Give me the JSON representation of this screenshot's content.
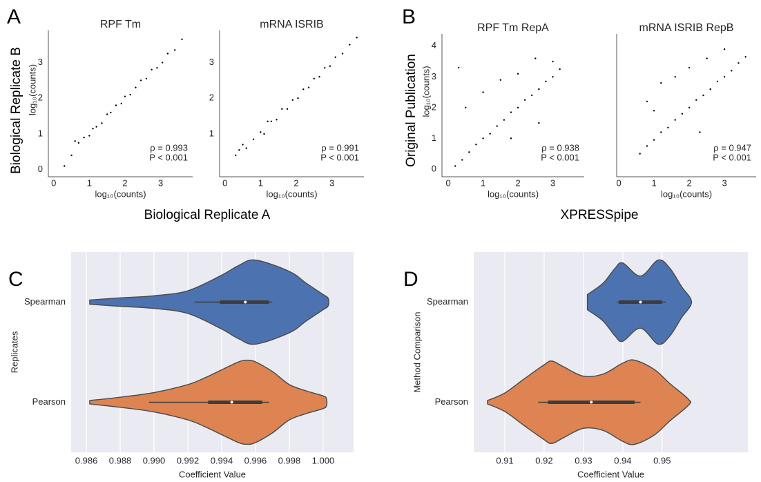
{
  "figure": {
    "panel_letters": [
      "A",
      "B",
      "C",
      "D"
    ],
    "shared_labels": [
      "Biological Replicate B",
      "Biological Replicate A",
      "Original Publication",
      "XPRESSpipe"
    ]
  },
  "chart_data": [
    {
      "type": "scatter",
      "title": "RPF Tm",
      "xlabel": "log₁₀(counts)",
      "ylabel": "log₁₀(counts)",
      "color": "#000000",
      "x": [
        0.3,
        0.5,
        0.7,
        0.85,
        1.0,
        1.1,
        1.2,
        1.35,
        1.5,
        1.6,
        1.75,
        1.9,
        2.0,
        2.15,
        2.3,
        2.45,
        2.6,
        2.75,
        2.9,
        3.05,
        3.2,
        3.4,
        3.6,
        0.6
      ],
      "y": [
        0.1,
        0.4,
        0.75,
        0.9,
        0.95,
        1.15,
        1.2,
        1.3,
        1.55,
        1.6,
        1.8,
        1.85,
        2.05,
        2.1,
        2.3,
        2.5,
        2.55,
        2.8,
        2.85,
        3.0,
        3.25,
        3.35,
        3.65,
        0.8
      ],
      "xlim": [
        -0.15,
        3.9
      ],
      "ylim": [
        -0.2,
        3.9
      ],
      "xticks": [
        0,
        1,
        2,
        3
      ],
      "yticks": [
        0,
        1,
        2,
        3
      ],
      "annotations": [
        "ρ = 0.993",
        "P < 0.001"
      ]
    },
    {
      "type": "scatter",
      "title": "mRNA ISRIB",
      "xlabel": "log₁₀(counts)",
      "color": "#000000",
      "x": [
        0.3,
        0.4,
        0.6,
        0.8,
        1.0,
        1.1,
        1.3,
        1.45,
        1.6,
        1.75,
        1.9,
        2.05,
        2.2,
        2.35,
        2.5,
        2.65,
        2.8,
        2.95,
        3.1,
        3.3,
        3.5,
        3.7,
        0.5,
        1.2
      ],
      "y": [
        0.4,
        0.55,
        0.6,
        0.85,
        1.05,
        1.0,
        1.35,
        1.4,
        1.7,
        1.7,
        1.95,
        2.0,
        2.25,
        2.3,
        2.55,
        2.6,
        2.85,
        2.9,
        3.15,
        3.25,
        3.5,
        3.7,
        0.7,
        1.35
      ],
      "xlim": [
        -0.15,
        3.9
      ],
      "ylim": [
        -0.2,
        3.9
      ],
      "xticks": [
        0,
        1,
        2,
        3
      ],
      "yticks": [
        1,
        2,
        3
      ],
      "annotations": [
        "ρ = 0.991",
        "P < 0.001"
      ]
    },
    {
      "type": "scatter",
      "title": "RPF Tm RepA",
      "xlabel": "log₁₀(counts)",
      "ylabel": "log₁₀(counts)",
      "color": "#000000",
      "x": [
        0.2,
        0.4,
        0.6,
        0.8,
        1.0,
        1.2,
        1.4,
        1.6,
        1.8,
        2.0,
        2.2,
        2.4,
        2.6,
        2.8,
        3.0,
        3.2,
        0.5,
        1.0,
        1.5,
        2.0,
        2.5,
        3.0,
        0.3,
        1.8,
        2.6
      ],
      "y": [
        0.1,
        0.3,
        0.55,
        0.8,
        1.0,
        1.15,
        1.4,
        1.6,
        1.85,
        2.0,
        2.25,
        2.4,
        2.6,
        2.85,
        3.0,
        3.25,
        2.0,
        2.5,
        2.9,
        3.1,
        3.6,
        3.5,
        3.3,
        1.0,
        1.5
      ],
      "xlim": [
        -0.18,
        3.9
      ],
      "ylim": [
        -0.25,
        4.4
      ],
      "xticks": [
        0,
        1,
        2,
        3
      ],
      "yticks": [
        0,
        1,
        2,
        3,
        4
      ],
      "annotations": [
        "ρ = 0.938",
        "P < 0.001"
      ]
    },
    {
      "type": "scatter",
      "title": "mRNA ISRIB RepB",
      "xlabel": "log₁₀(counts)",
      "color": "#000000",
      "x": [
        0.6,
        0.8,
        1.0,
        1.2,
        1.4,
        1.6,
        1.8,
        2.0,
        2.2,
        2.4,
        2.6,
        2.8,
        3.0,
        3.2,
        3.4,
        3.6,
        0.8,
        1.2,
        1.6,
        2.0,
        2.5,
        3.0,
        1.0,
        2.3
      ],
      "y": [
        0.5,
        0.75,
        0.95,
        1.2,
        1.35,
        1.6,
        1.8,
        2.0,
        2.25,
        2.4,
        2.6,
        2.85,
        3.0,
        3.2,
        3.45,
        3.65,
        2.2,
        2.8,
        3.0,
        3.3,
        3.6,
        3.9,
        1.9,
        1.2
      ],
      "xlim": [
        -0.06,
        3.9
      ],
      "ylim": [
        -0.25,
        4.4
      ],
      "xticks": [
        0,
        1,
        2,
        3
      ],
      "annotations": [
        "ρ = 0.947",
        "P < 0.001"
      ]
    },
    {
      "type": "violin",
      "xlabel": "Coefficient Value",
      "ylabel": "Replicates",
      "grid": true,
      "categories": [
        "Spearman",
        "Pearson"
      ],
      "xlim": [
        0.9851,
        1.0018
      ],
      "xticks": [
        0.986,
        0.988,
        {
          "value": 0.99,
          "label": "0.990"
        },
        0.992,
        0.994,
        0.996,
        0.998,
        {
          "value": 1,
          "label": "1.000"
        }
      ],
      "violins": [
        {
          "color": "#4c72b0",
          "density_x": [
            0.9862,
            0.988,
            0.99,
            0.992,
            0.994,
            0.995,
            0.996,
            0.998,
            0.999,
            1.0,
            1.0003
          ],
          "density": [
            0.05,
            0.1,
            0.15,
            0.27,
            0.64,
            0.87,
            1.0,
            0.73,
            0.45,
            0.18,
            0.09
          ],
          "whisker": [
            0.9924,
            0.997
          ],
          "quartiles": [
            0.9939,
            0.9968
          ],
          "median": 0.9954
        },
        {
          "color": "#dd8452",
          "density_x": [
            0.9862,
            0.988,
            0.99,
            0.992,
            0.993,
            0.994,
            0.995,
            0.9955,
            0.996,
            0.997,
            0.998,
            0.999,
            1.0,
            1.0002
          ],
          "density": [
            0.04,
            0.12,
            0.23,
            0.42,
            0.58,
            0.77,
            0.96,
            1.0,
            0.96,
            0.73,
            0.42,
            0.27,
            0.15,
            0.08
          ],
          "whisker": [
            0.9897,
            0.9968
          ],
          "quartiles": [
            0.9932,
            0.9964
          ],
          "median": 0.9946
        }
      ]
    },
    {
      "type": "violin",
      "xlabel": "Coefficient Value",
      "ylabel": "Method Comparison",
      "grid": true,
      "categories": [
        "Spearman",
        "Pearson"
      ],
      "xlim": [
        0.9021,
        0.9718
      ],
      "xticks": [
        0.91,
        0.92,
        0.93,
        0.94,
        0.95
      ],
      "violins": [
        {
          "color": "#4c72b0",
          "density_x": [
            0.931,
            0.935,
            0.938,
            0.94,
            0.9445,
            0.949,
            0.952,
            0.955,
            0.9572
          ],
          "density": [
            0.18,
            0.45,
            0.8,
            0.93,
            0.62,
            1.0,
            0.8,
            0.36,
            0.09
          ],
          "whisker": [
            0.9385,
            0.951
          ],
          "quartiles": [
            0.939,
            0.95
          ],
          "median": 0.9445
        },
        {
          "color": "#dd8452",
          "density_x": [
            0.9056,
            0.91,
            0.915,
            0.92,
            0.922,
            0.925,
            0.93,
            0.935,
            0.94,
            0.943,
            0.948,
            0.952,
            0.9567
          ],
          "density": [
            0.04,
            0.22,
            0.56,
            0.89,
            0.98,
            0.84,
            0.62,
            0.67,
            0.93,
            1.0,
            0.78,
            0.44,
            0.07
          ],
          "whisker": [
            0.9185,
            0.9445
          ],
          "quartiles": [
            0.921,
            0.943
          ],
          "median": 0.932
        }
      ]
    }
  ]
}
